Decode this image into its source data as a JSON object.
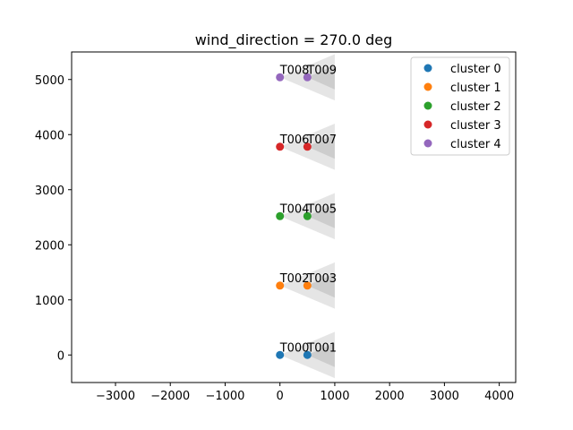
{
  "chart_data": {
    "type": "scatter",
    "title": "wind_direction = 270.0 deg",
    "xlabel": "",
    "ylabel": "",
    "xlim": [
      -3800,
      4300
    ],
    "ylim": [
      -500,
      5500
    ],
    "x_ticks": [
      -3000,
      -2000,
      -1000,
      0,
      1000,
      2000,
      3000,
      4000
    ],
    "y_ticks": [
      0,
      1000,
      2000,
      3000,
      4000,
      5000
    ],
    "grid": false,
    "legend_position": "top-right",
    "series": [
      {
        "name": "cluster 0",
        "color": "#1f77b4",
        "points": [
          {
            "x": 0,
            "y": 0,
            "label": "T000"
          },
          {
            "x": 500,
            "y": 0,
            "label": "T001"
          }
        ]
      },
      {
        "name": "cluster 1",
        "color": "#ff7f0e",
        "points": [
          {
            "x": 0,
            "y": 1260,
            "label": "T002"
          },
          {
            "x": 500,
            "y": 1260,
            "label": "T003"
          }
        ]
      },
      {
        "name": "cluster 2",
        "color": "#2ca02c",
        "points": [
          {
            "x": 0,
            "y": 2520,
            "label": "T004"
          },
          {
            "x": 500,
            "y": 2520,
            "label": "T005"
          }
        ]
      },
      {
        "name": "cluster 3",
        "color": "#d62728",
        "points": [
          {
            "x": 0,
            "y": 3780,
            "label": "T006"
          },
          {
            "x": 500,
            "y": 3780,
            "label": "T007"
          }
        ]
      },
      {
        "name": "cluster 4",
        "color": "#9467bd",
        "points": [
          {
            "x": 0,
            "y": 5040,
            "label": "T008"
          },
          {
            "x": 500,
            "y": 5040,
            "label": "T009"
          }
        ]
      }
    ],
    "wakes": [
      {
        "source": "T000",
        "to_x": 1000,
        "half_width_at_end": 420
      },
      {
        "source": "T001",
        "to_x": 1000,
        "half_width_at_end": 220
      },
      {
        "source": "T002",
        "to_x": 1000,
        "half_width_at_end": 420
      },
      {
        "source": "T003",
        "to_x": 1000,
        "half_width_at_end": 220
      },
      {
        "source": "T004",
        "to_x": 1000,
        "half_width_at_end": 420
      },
      {
        "source": "T005",
        "to_x": 1000,
        "half_width_at_end": 220
      },
      {
        "source": "T006",
        "to_x": 1000,
        "half_width_at_end": 420
      },
      {
        "source": "T007",
        "to_x": 1000,
        "half_width_at_end": 220
      },
      {
        "source": "T008",
        "to_x": 1000,
        "half_width_at_end": 420
      },
      {
        "source": "T009",
        "to_x": 1000,
        "half_width_at_end": 220
      }
    ]
  }
}
